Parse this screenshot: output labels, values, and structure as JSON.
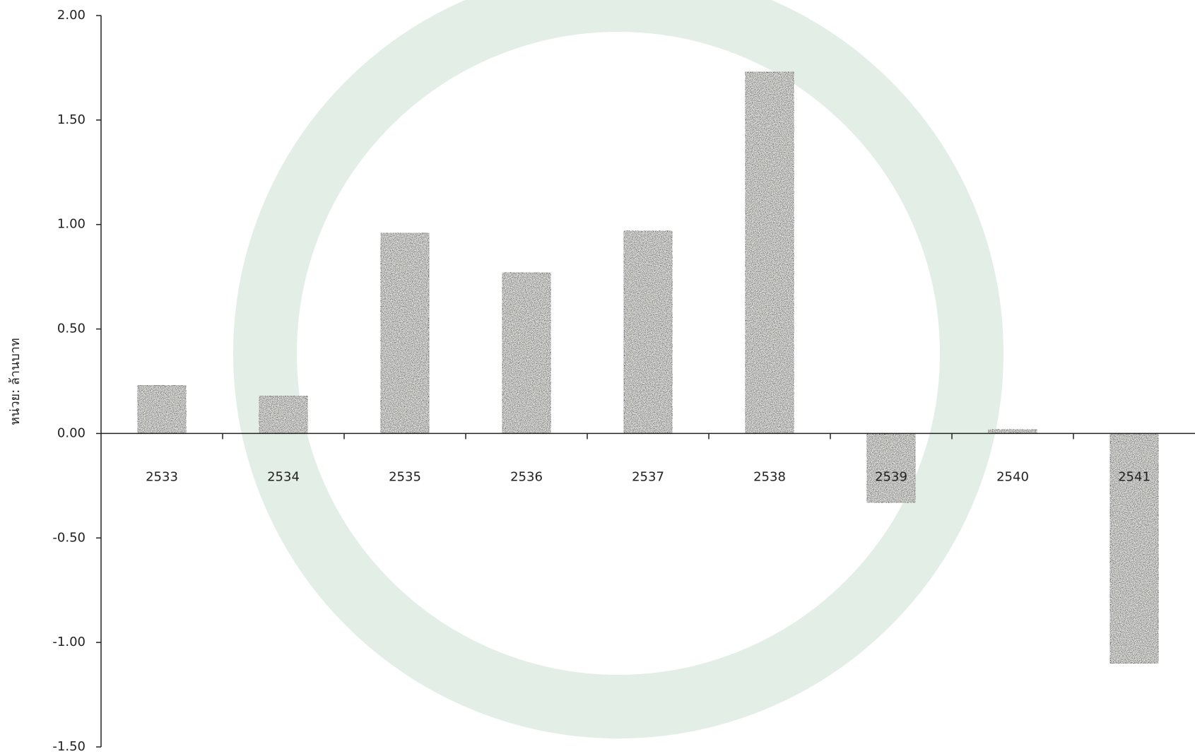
{
  "chart_data": {
    "type": "bar",
    "y_label": "หน่วย: ล้านบาท",
    "categories": [
      "2533",
      "2534",
      "2535",
      "2536",
      "2537",
      "2538",
      "2539",
      "2540",
      "2541"
    ],
    "values": [
      0.23,
      0.18,
      0.96,
      0.77,
      0.97,
      1.73,
      -0.33,
      0.02,
      -1.1
    ],
    "color": "#6e6e6e",
    "ylim": [
      -1.5,
      2.0
    ],
    "yticks": [
      {
        "value": 2.0,
        "label": "2.00"
      },
      {
        "value": 1.5,
        "label": "1.50"
      },
      {
        "value": 1.0,
        "label": "1.00"
      },
      {
        "value": 0.5,
        "label": "0.50"
      },
      {
        "value": 0,
        "label": "0.00"
      },
      {
        "value": -0.5,
        "label": "-0.50"
      },
      {
        "value": -1.0,
        "label": "-1.00"
      },
      {
        "value": -1.5,
        "label": "-1.50"
      }
    ],
    "grid": false
  }
}
